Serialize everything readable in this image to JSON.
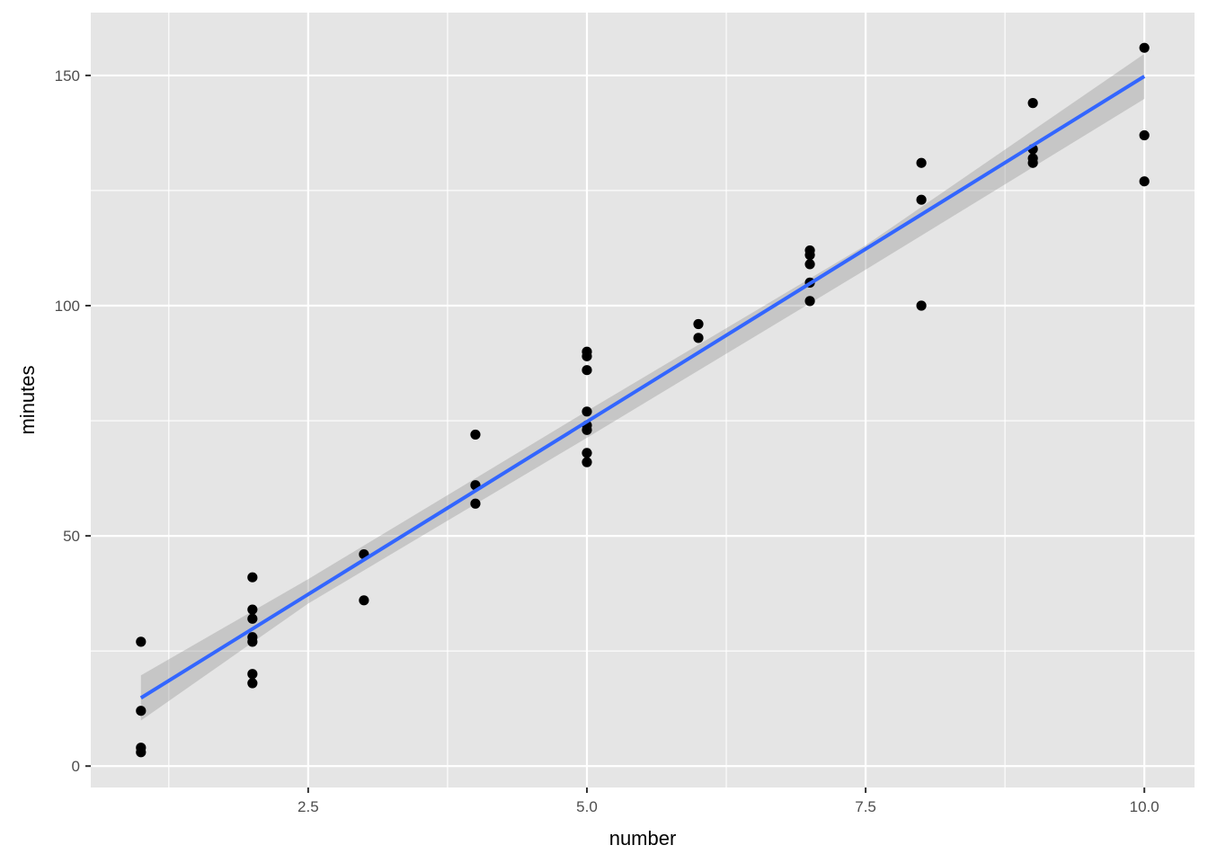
{
  "chart_data": {
    "type": "scatter",
    "title": "",
    "xlabel": "number",
    "ylabel": "minutes",
    "xlim": [
      0.55,
      10.45
    ],
    "ylim": [
      -4.65,
      163.65
    ],
    "x_ticks": [
      2.5,
      5.0,
      7.5,
      10.0
    ],
    "x_tick_labels": [
      "2.5",
      "5.0",
      "7.5",
      "10.0"
    ],
    "y_ticks": [
      0,
      50,
      100,
      150
    ],
    "y_tick_labels": [
      "0",
      "50",
      "100",
      "150"
    ],
    "grid": true,
    "legend": "none",
    "points": [
      {
        "x": 1,
        "y": 27
      },
      {
        "x": 1,
        "y": 12
      },
      {
        "x": 1,
        "y": 4
      },
      {
        "x": 1,
        "y": 3
      },
      {
        "x": 2,
        "y": 41
      },
      {
        "x": 2,
        "y": 34
      },
      {
        "x": 2,
        "y": 32
      },
      {
        "x": 2,
        "y": 28
      },
      {
        "x": 2,
        "y": 27
      },
      {
        "x": 2,
        "y": 20
      },
      {
        "x": 2,
        "y": 18
      },
      {
        "x": 3,
        "y": 46
      },
      {
        "x": 3,
        "y": 36
      },
      {
        "x": 4,
        "y": 72
      },
      {
        "x": 4,
        "y": 61
      },
      {
        "x": 4,
        "y": 57
      },
      {
        "x": 5,
        "y": 90
      },
      {
        "x": 5,
        "y": 89
      },
      {
        "x": 5,
        "y": 86
      },
      {
        "x": 5,
        "y": 77
      },
      {
        "x": 5,
        "y": 74
      },
      {
        "x": 5,
        "y": 73
      },
      {
        "x": 5,
        "y": 68
      },
      {
        "x": 5,
        "y": 66
      },
      {
        "x": 6,
        "y": 96
      },
      {
        "x": 6,
        "y": 93
      },
      {
        "x": 7,
        "y": 112
      },
      {
        "x": 7,
        "y": 111
      },
      {
        "x": 7,
        "y": 109
      },
      {
        "x": 7,
        "y": 105
      },
      {
        "x": 7,
        "y": 101
      },
      {
        "x": 8,
        "y": 131
      },
      {
        "x": 8,
        "y": 123
      },
      {
        "x": 8,
        "y": 100
      },
      {
        "x": 9,
        "y": 144
      },
      {
        "x": 9,
        "y": 134
      },
      {
        "x": 9,
        "y": 132
      },
      {
        "x": 9,
        "y": 131
      },
      {
        "x": 10,
        "y": 156
      },
      {
        "x": 10,
        "y": 137
      },
      {
        "x": 10,
        "y": 127
      }
    ],
    "fit_line": {
      "method": "linear",
      "x": [
        1,
        10
      ],
      "y": [
        14.8,
        149.8
      ],
      "color": "#3366ff",
      "confidence_band": {
        "x": [
          1,
          2.5,
          5,
          7.5,
          10
        ],
        "lower": [
          9.9,
          35.3,
          71.3,
          107.8,
          144.9
        ],
        "upper": [
          19.7,
          40.6,
          77.1,
          113.1,
          154.7
        ]
      },
      "band_color": "#999999"
    },
    "point_color": "#000000",
    "panel_background": "#e5e5e5",
    "grid_color": "#ffffff"
  }
}
